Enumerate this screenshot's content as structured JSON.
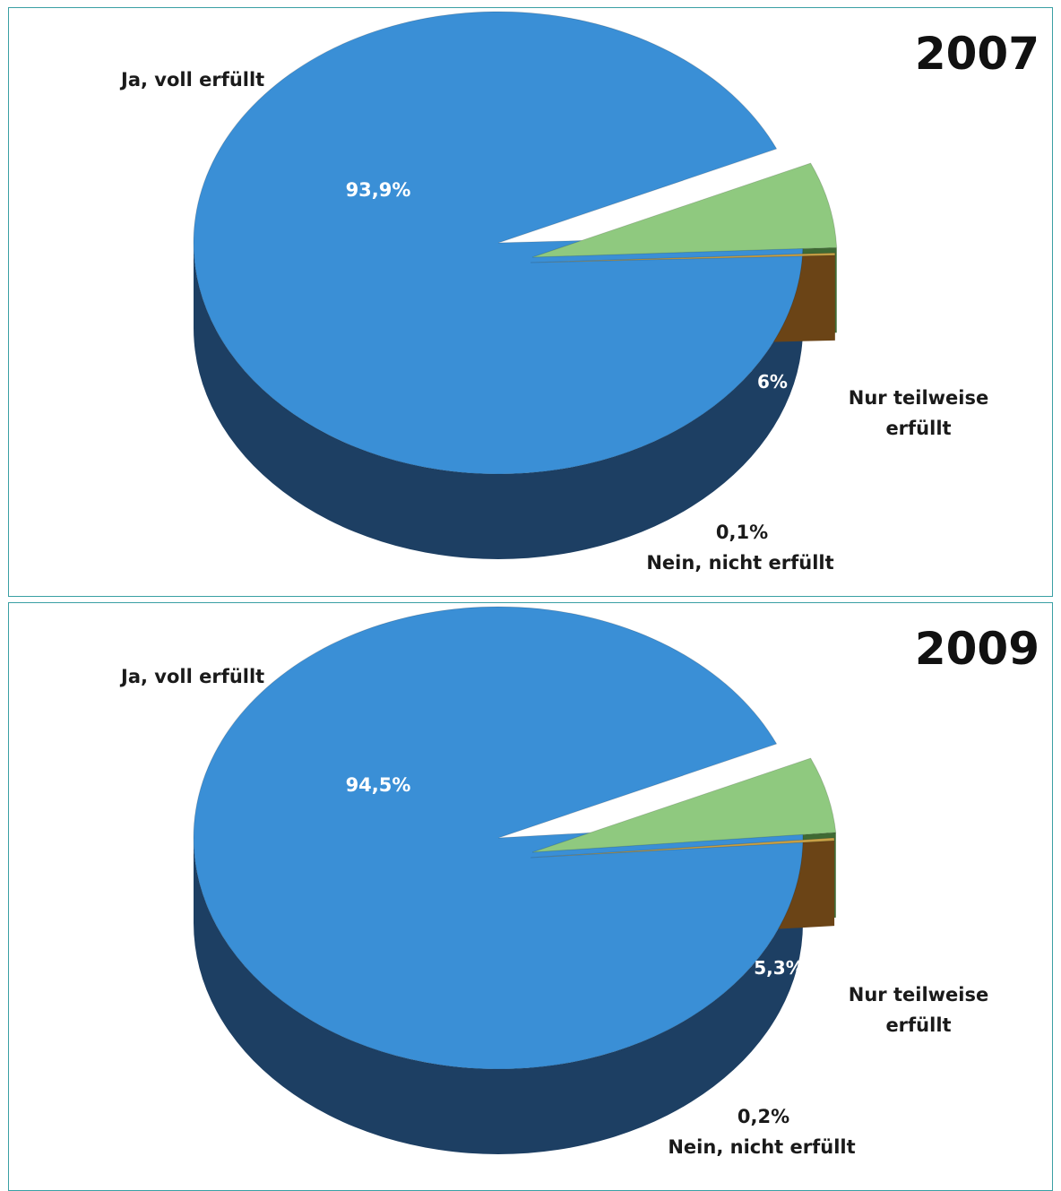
{
  "colors": {
    "ja_top": "#3a8fd6",
    "ja_side": "#1d3f63",
    "teil_top": "#8fc97f",
    "teil_side": "#3f6a34",
    "nein_top": "#c9a146",
    "nein_side": "#6b4416",
    "panel_border": "#3aa0a4"
  },
  "chart_data": [
    {
      "type": "pie",
      "title": "2007",
      "categories": [
        "Ja, voll erfüllt",
        "Nur teilweise erfüllt",
        "Nein, nicht erfüllt"
      ],
      "values": [
        93.9,
        6.0,
        0.1
      ],
      "value_labels": [
        "93,9%",
        "6%",
        "0,1%"
      ],
      "labels": {
        "ja": "Ja, voll erfüllt",
        "teil_line1": "Nur teilweise",
        "teil_line2": "erfüllt",
        "nein_pct": "0,1%",
        "nein_name": "Nein, nicht erfüllt"
      },
      "legend": "none",
      "style": "3d-exploded"
    },
    {
      "type": "pie",
      "title": "2009",
      "categories": [
        "Ja, voll erfüllt",
        "Nur teilweise erfüllt",
        "Nein, nicht erfüllt"
      ],
      "values": [
        94.5,
        5.3,
        0.2
      ],
      "value_labels": [
        "94,5%",
        "5,3%",
        "0,2%"
      ],
      "labels": {
        "ja": "Ja, voll erfüllt",
        "teil_line1": "Nur teilweise",
        "teil_line2": "erfüllt",
        "nein_pct": "0,2%",
        "nein_name": "Nein, nicht erfüllt"
      },
      "legend": "none",
      "style": "3d-exploded"
    }
  ]
}
